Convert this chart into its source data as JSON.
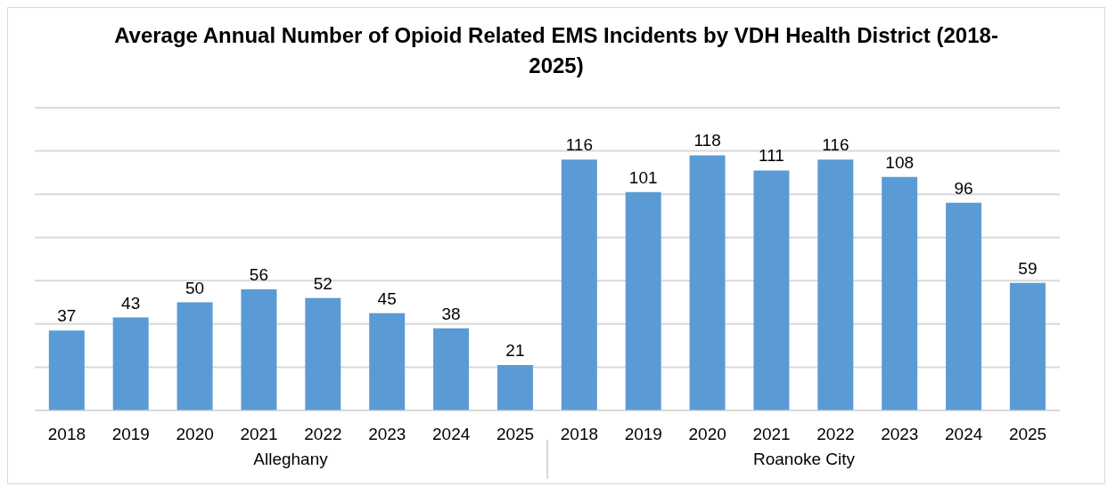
{
  "chart_data": {
    "type": "bar",
    "title": "Average Annual Number of Opioid Related EMS Incidents by VDH Health District (2018-2025)",
    "categories": [
      "2018",
      "2019",
      "2020",
      "2021",
      "2022",
      "2023",
      "2024",
      "2025",
      "2018",
      "2019",
      "2020",
      "2021",
      "2022",
      "2023",
      "2024",
      "2025"
    ],
    "values": [
      37,
      43,
      50,
      56,
      52,
      45,
      38,
      21,
      116,
      101,
      118,
      111,
      116,
      108,
      96,
      59
    ],
    "color": "#5b9bd5",
    "tick_labels": "x",
    "grid": "y",
    "data_labels": true,
    "annotations": [
      "Alleghany",
      "Roanoke City"
    ]
  }
}
